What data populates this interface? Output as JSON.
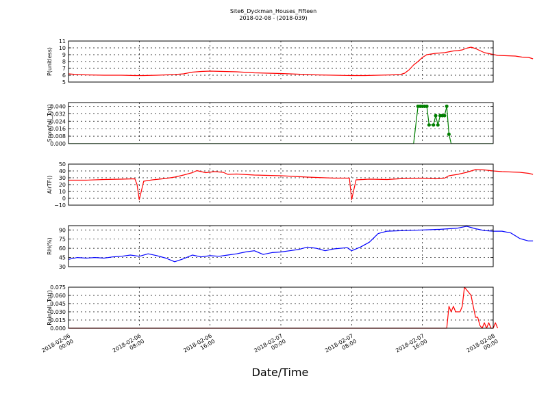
{
  "chart_data": {
    "type": "line",
    "title": "Site6_Dyckman_Houses_Fifteen",
    "subtitle": "2018-02-08 - (2018-039)",
    "xlabel": "Date/Time",
    "x_range": [
      "2018-02-06 00:00",
      "2018-02-08 00:00"
    ],
    "x_ticks": [
      {
        "value": "2018-02-06 00:00",
        "line1": "2018-02-06",
        "line2": "00:00"
      },
      {
        "value": "2018-02-06 08:00",
        "line1": "2018-02-06",
        "line2": "08:00"
      },
      {
        "value": "2018-02-06 16:00",
        "line1": "2018-02-06",
        "line2": "16:00"
      },
      {
        "value": "2018-02-07 00:00",
        "line1": "2018-02-07",
        "line2": "00:00"
      },
      {
        "value": "2018-02-07 08:00",
        "line1": "2018-02-07",
        "line2": "08:00"
      },
      {
        "value": "2018-02-07 16:00",
        "line1": "2018-02-07",
        "line2": "16:00"
      },
      {
        "value": "2018-02-08 00:00",
        "line1": "2018-02-08",
        "line2": "00:00"
      }
    ],
    "grid": true,
    "panels": [
      {
        "ylabel": "P(unitless)",
        "ylim": [
          5,
          11
        ],
        "yticks": [
          "5",
          "6",
          "7",
          "8",
          "9",
          "10",
          "11"
        ],
        "ytick_values": [
          5,
          6,
          7,
          8,
          9,
          10,
          11
        ],
        "color": "#ff0000",
        "markers": false,
        "series": [
          {
            "x": "2018-02-06 00:00",
            "y": 6.2
          },
          {
            "x": "2018-02-06 01:00",
            "y": 6.1
          },
          {
            "x": "2018-02-06 02:00",
            "y": 6.05
          },
          {
            "x": "2018-02-06 04:00",
            "y": 6.0
          },
          {
            "x": "2018-02-06 06:00",
            "y": 6.0
          },
          {
            "x": "2018-02-06 07:30",
            "y": 5.95
          },
          {
            "x": "2018-02-06 08:30",
            "y": 5.95
          },
          {
            "x": "2018-02-06 10:00",
            "y": 6.0
          },
          {
            "x": "2018-02-06 12:00",
            "y": 6.1
          },
          {
            "x": "2018-02-06 13:00",
            "y": 6.2
          },
          {
            "x": "2018-02-06 14:00",
            "y": 6.45
          },
          {
            "x": "2018-02-06 15:00",
            "y": 6.55
          },
          {
            "x": "2018-02-06 16:00",
            "y": 6.6
          },
          {
            "x": "2018-02-06 17:30",
            "y": 6.55
          },
          {
            "x": "2018-02-06 19:00",
            "y": 6.5
          },
          {
            "x": "2018-02-06 21:00",
            "y": 6.35
          },
          {
            "x": "2018-02-07 00:00",
            "y": 6.25
          },
          {
            "x": "2018-02-07 02:00",
            "y": 6.15
          },
          {
            "x": "2018-02-07 04:00",
            "y": 6.05
          },
          {
            "x": "2018-02-07 06:00",
            "y": 6.0
          },
          {
            "x": "2018-02-07 08:00",
            "y": 5.95
          },
          {
            "x": "2018-02-07 09:30",
            "y": 5.95
          },
          {
            "x": "2018-02-07 11:00",
            "y": 6.0
          },
          {
            "x": "2018-02-07 12:30",
            "y": 6.05
          },
          {
            "x": "2018-02-07 13:30",
            "y": 6.1
          },
          {
            "x": "2018-02-07 14:00",
            "y": 6.3
          },
          {
            "x": "2018-02-07 14:30",
            "y": 6.8
          },
          {
            "x": "2018-02-07 15:00",
            "y": 7.5
          },
          {
            "x": "2018-02-07 15:30",
            "y": 8.0
          },
          {
            "x": "2018-02-07 16:00",
            "y": 8.6
          },
          {
            "x": "2018-02-07 16:30",
            "y": 9.0
          },
          {
            "x": "2018-02-07 17:30",
            "y": 9.2
          },
          {
            "x": "2018-02-07 18:30",
            "y": 9.3
          },
          {
            "x": "2018-02-07 19:30",
            "y": 9.55
          },
          {
            "x": "2018-02-07 20:00",
            "y": 9.6
          },
          {
            "x": "2018-02-07 20:30",
            "y": 9.7
          },
          {
            "x": "2018-02-07 21:00",
            "y": 9.95
          },
          {
            "x": "2018-02-07 21:30",
            "y": 10.1
          },
          {
            "x": "2018-02-07 22:00",
            "y": 9.9
          },
          {
            "x": "2018-02-07 22:30",
            "y": 9.6
          },
          {
            "x": "2018-02-07 23:00",
            "y": 9.3
          },
          {
            "x": "2018-02-07 23:45",
            "y": 9.1
          },
          {
            "x": "2018-02-08 00:30",
            "y": 8.9
          },
          {
            "x": "2018-02-08 01:30",
            "y": 8.85
          },
          {
            "x": "2018-02-08 02:30",
            "y": 8.8
          },
          {
            "x": "2018-02-08 03:15",
            "y": 8.65
          },
          {
            "x": "2018-02-08 04:00",
            "y": 8.6
          },
          {
            "x": "2018-02-08 04:30",
            "y": 8.4
          }
        ]
      },
      {
        "ylabel": "Snowfall_Tot()",
        "ylim": [
          0,
          0.044
        ],
        "yticks": [
          "0.000",
          "0.008",
          "0.016",
          "0.024",
          "0.032",
          "0.040"
        ],
        "ytick_values": [
          0,
          0.008,
          0.016,
          0.024,
          0.032,
          0.04
        ],
        "color": "#007f00",
        "markers": true,
        "series": [
          {
            "x": "2018-02-06 00:00",
            "y": 0
          },
          {
            "x": "2018-02-07 15:00",
            "y": 0
          },
          {
            "x": "2018-02-07 15:30",
            "y": 0.04
          },
          {
            "x": "2018-02-07 15:45",
            "y": 0.04
          },
          {
            "x": "2018-02-07 16:00",
            "y": 0.04
          },
          {
            "x": "2018-02-07 16:15",
            "y": 0.04
          },
          {
            "x": "2018-02-07 16:30",
            "y": 0.04
          },
          {
            "x": "2018-02-07 16:45",
            "y": 0.02
          },
          {
            "x": "2018-02-07 17:15",
            "y": 0.02
          },
          {
            "x": "2018-02-07 17:30",
            "y": 0.03
          },
          {
            "x": "2018-02-07 17:45",
            "y": 0.02
          },
          {
            "x": "2018-02-07 18:00",
            "y": 0.03
          },
          {
            "x": "2018-02-07 18:15",
            "y": 0.03
          },
          {
            "x": "2018-02-07 18:30",
            "y": 0.03
          },
          {
            "x": "2018-02-07 18:45",
            "y": 0.04
          },
          {
            "x": "2018-02-07 19:00",
            "y": 0.01
          },
          {
            "x": "2018-02-07 19:15",
            "y": 0
          },
          {
            "x": "2018-02-08 00:00",
            "y": 0
          }
        ]
      },
      {
        "ylabel": "AirTF()",
        "ylim": [
          -10,
          50
        ],
        "yticks": [
          "−10",
          "0",
          "10",
          "20",
          "30",
          "40",
          "50"
        ],
        "ytick_values": [
          -10,
          0,
          10,
          20,
          30,
          40,
          50
        ],
        "color": "#ff0000",
        "markers": false,
        "series": [
          {
            "x": "2018-02-06 00:00",
            "y": 26.5
          },
          {
            "x": "2018-02-06 02:00",
            "y": 26.5
          },
          {
            "x": "2018-02-06 04:00",
            "y": 27.5
          },
          {
            "x": "2018-02-06 06:00",
            "y": 28.0
          },
          {
            "x": "2018-02-06 07:30",
            "y": 28.5
          },
          {
            "x": "2018-02-06 07:45",
            "y": 20.0
          },
          {
            "x": "2018-02-06 08:00",
            "y": -2.0
          },
          {
            "x": "2018-02-06 08:30",
            "y": 25.0
          },
          {
            "x": "2018-02-06 09:30",
            "y": 27.0
          },
          {
            "x": "2018-02-06 11:00",
            "y": 29.0
          },
          {
            "x": "2018-02-06 12:00",
            "y": 31.0
          },
          {
            "x": "2018-02-06 13:00",
            "y": 34.0
          },
          {
            "x": "2018-02-06 14:00",
            "y": 37.5
          },
          {
            "x": "2018-02-06 14:30",
            "y": 40.5
          },
          {
            "x": "2018-02-06 15:30",
            "y": 37.5
          },
          {
            "x": "2018-02-06 16:30",
            "y": 39.0
          },
          {
            "x": "2018-02-06 17:30",
            "y": 38.0
          },
          {
            "x": "2018-02-06 18:00",
            "y": 35.0
          },
          {
            "x": "2018-02-06 19:00",
            "y": 35.5
          },
          {
            "x": "2018-02-06 21:00",
            "y": 34.0
          },
          {
            "x": "2018-02-07 00:00",
            "y": 33.0
          },
          {
            "x": "2018-02-07 03:00",
            "y": 31.0
          },
          {
            "x": "2018-02-07 06:00",
            "y": 29.5
          },
          {
            "x": "2018-02-07 07:45",
            "y": 29.5
          },
          {
            "x": "2018-02-07 08:00",
            "y": -2.0
          },
          {
            "x": "2018-02-07 08:30",
            "y": 27.0
          },
          {
            "x": "2018-02-07 10:00",
            "y": 28.0
          },
          {
            "x": "2018-02-07 12:00",
            "y": 27.5
          },
          {
            "x": "2018-02-07 14:00",
            "y": 29.0
          },
          {
            "x": "2018-02-07 16:00",
            "y": 29.5
          },
          {
            "x": "2018-02-07 17:30",
            "y": 28.5
          },
          {
            "x": "2018-02-07 18:30",
            "y": 29.5
          },
          {
            "x": "2018-02-07 19:00",
            "y": 33.0
          },
          {
            "x": "2018-02-07 20:00",
            "y": 35.0
          },
          {
            "x": "2018-02-07 21:00",
            "y": 38.0
          },
          {
            "x": "2018-02-07 22:00",
            "y": 42.0
          },
          {
            "x": "2018-02-07 23:00",
            "y": 41.5
          },
          {
            "x": "2018-02-08 00:00",
            "y": 40.0
          },
          {
            "x": "2018-02-08 01:00",
            "y": 39.0
          },
          {
            "x": "2018-02-08 02:00",
            "y": 38.5
          },
          {
            "x": "2018-02-08 03:00",
            "y": 38.0
          },
          {
            "x": "2018-02-08 04:00",
            "y": 36.5
          },
          {
            "x": "2018-02-08 04:30",
            "y": 35.0
          }
        ]
      },
      {
        "ylabel": "RH(%)",
        "ylim": [
          30,
          97
        ],
        "yticks": [
          "30",
          "45",
          "60",
          "75",
          "90"
        ],
        "ytick_values": [
          30,
          45,
          60,
          75,
          90
        ],
        "color": "#0000ff",
        "markers": false,
        "series": [
          {
            "x": "2018-02-06 00:00",
            "y": 42
          },
          {
            "x": "2018-02-06 01:00",
            "y": 45
          },
          {
            "x": "2018-02-06 02:00",
            "y": 44
          },
          {
            "x": "2018-02-06 03:00",
            "y": 45
          },
          {
            "x": "2018-02-06 04:00",
            "y": 44
          },
          {
            "x": "2018-02-06 05:00",
            "y": 46
          },
          {
            "x": "2018-02-06 06:00",
            "y": 47
          },
          {
            "x": "2018-02-06 07:00",
            "y": 49
          },
          {
            "x": "2018-02-06 08:00",
            "y": 47
          },
          {
            "x": "2018-02-06 09:00",
            "y": 51
          },
          {
            "x": "2018-02-06 10:00",
            "y": 48
          },
          {
            "x": "2018-02-06 11:00",
            "y": 44
          },
          {
            "x": "2018-02-06 12:00",
            "y": 38
          },
          {
            "x": "2018-02-06 13:00",
            "y": 43
          },
          {
            "x": "2018-02-06 14:00",
            "y": 49
          },
          {
            "x": "2018-02-06 15:00",
            "y": 46
          },
          {
            "x": "2018-02-06 16:00",
            "y": 48
          },
          {
            "x": "2018-02-06 17:00",
            "y": 47
          },
          {
            "x": "2018-02-06 18:00",
            "y": 49
          },
          {
            "x": "2018-02-06 19:00",
            "y": 51
          },
          {
            "x": "2018-02-06 20:00",
            "y": 54
          },
          {
            "x": "2018-02-06 21:00",
            "y": 56
          },
          {
            "x": "2018-02-06 22:00",
            "y": 50
          },
          {
            "x": "2018-02-06 23:00",
            "y": 53
          },
          {
            "x": "2018-02-07 00:00",
            "y": 54
          },
          {
            "x": "2018-02-07 01:00",
            "y": 56
          },
          {
            "x": "2018-02-07 02:00",
            "y": 58
          },
          {
            "x": "2018-02-07 03:00",
            "y": 62
          },
          {
            "x": "2018-02-07 04:00",
            "y": 60
          },
          {
            "x": "2018-02-07 05:00",
            "y": 56
          },
          {
            "x": "2018-02-07 06:00",
            "y": 59
          },
          {
            "x": "2018-02-07 07:30",
            "y": 61
          },
          {
            "x": "2018-02-07 08:00",
            "y": 56
          },
          {
            "x": "2018-02-07 09:00",
            "y": 62
          },
          {
            "x": "2018-02-07 10:00",
            "y": 70
          },
          {
            "x": "2018-02-07 11:00",
            "y": 84
          },
          {
            "x": "2018-02-07 12:00",
            "y": 88
          },
          {
            "x": "2018-02-07 14:00",
            "y": 89
          },
          {
            "x": "2018-02-07 16:00",
            "y": 90
          },
          {
            "x": "2018-02-07 18:00",
            "y": 91
          },
          {
            "x": "2018-02-07 20:00",
            "y": 93
          },
          {
            "x": "2018-02-07 21:00",
            "y": 96
          },
          {
            "x": "2018-02-07 22:00",
            "y": 92
          },
          {
            "x": "2018-02-07 23:00",
            "y": 89
          },
          {
            "x": "2018-02-08 00:00",
            "y": 88
          },
          {
            "x": "2018-02-08 01:00",
            "y": 88
          },
          {
            "x": "2018-02-08 02:00",
            "y": 85
          },
          {
            "x": "2018-02-08 03:00",
            "y": 76
          },
          {
            "x": "2018-02-08 04:00",
            "y": 72
          },
          {
            "x": "2018-02-08 04:30",
            "y": 72
          }
        ]
      },
      {
        "ylabel": "Rainfall_Tot()",
        "ylim": [
          0,
          0.075
        ],
        "yticks": [
          "0.000",
          "0.015",
          "0.030",
          "0.045",
          "0.060",
          "0.075"
        ],
        "ytick_values": [
          0,
          0.015,
          0.03,
          0.045,
          0.06,
          0.075
        ],
        "color": "#ff0000",
        "markers": false,
        "series": [
          {
            "x": "2018-02-06 00:00",
            "y": 0
          },
          {
            "x": "2018-02-07 18:45",
            "y": 0
          },
          {
            "x": "2018-02-07 19:00",
            "y": 0.04
          },
          {
            "x": "2018-02-07 19:15",
            "y": 0.03
          },
          {
            "x": "2018-02-07 19:30",
            "y": 0.04
          },
          {
            "x": "2018-02-07 19:45",
            "y": 0.03
          },
          {
            "x": "2018-02-07 20:15",
            "y": 0.03
          },
          {
            "x": "2018-02-07 20:30",
            "y": 0.04
          },
          {
            "x": "2018-02-07 20:45",
            "y": 0.075
          },
          {
            "x": "2018-02-07 21:15",
            "y": 0.065
          },
          {
            "x": "2018-02-07 21:30",
            "y": 0.06
          },
          {
            "x": "2018-02-07 21:45",
            "y": 0.04
          },
          {
            "x": "2018-02-07 22:00",
            "y": 0.02
          },
          {
            "x": "2018-02-07 22:15",
            "y": 0.02
          },
          {
            "x": "2018-02-07 22:30",
            "y": 0.005
          },
          {
            "x": "2018-02-07 22:45",
            "y": 0
          },
          {
            "x": "2018-02-07 23:00",
            "y": 0.01
          },
          {
            "x": "2018-02-07 23:15",
            "y": 0
          },
          {
            "x": "2018-02-07 23:30",
            "y": 0.01
          },
          {
            "x": "2018-02-07 23:45",
            "y": 0
          },
          {
            "x": "2018-02-08 00:00",
            "y": 0
          },
          {
            "x": "2018-02-08 00:15",
            "y": 0.01
          },
          {
            "x": "2018-02-08 00:30",
            "y": 0
          }
        ]
      }
    ]
  }
}
